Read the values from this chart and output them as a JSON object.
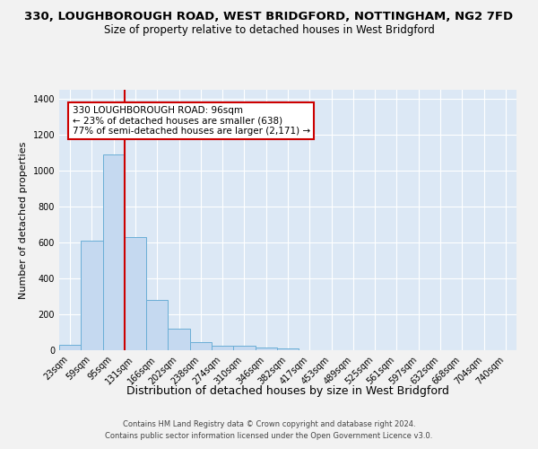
{
  "title_line1": "330, LOUGHBOROUGH ROAD, WEST BRIDGFORD, NOTTINGHAM, NG2 7FD",
  "title_line2": "Size of property relative to detached houses in West Bridgford",
  "xlabel": "Distribution of detached houses by size in West Bridgford",
  "ylabel": "Number of detached properties",
  "categories": [
    "23sqm",
    "59sqm",
    "95sqm",
    "131sqm",
    "166sqm",
    "202sqm",
    "238sqm",
    "274sqm",
    "310sqm",
    "346sqm",
    "382sqm",
    "417sqm",
    "453sqm",
    "489sqm",
    "525sqm",
    "561sqm",
    "597sqm",
    "632sqm",
    "668sqm",
    "704sqm",
    "740sqm"
  ],
  "values": [
    30,
    610,
    1090,
    630,
    280,
    120,
    45,
    25,
    25,
    15,
    10,
    0,
    0,
    0,
    0,
    0,
    0,
    0,
    0,
    0,
    0
  ],
  "bar_color": "#c5d9f0",
  "bar_edge_color": "#6aaed6",
  "red_line_label1": "330 LOUGHBOROUGH ROAD: 96sqm",
  "red_line_label2": "← 23% of detached houses are smaller (638)",
  "red_line_label3": "77% of semi-detached houses are larger (2,171) →",
  "ylim": [
    0,
    1450
  ],
  "yticks": [
    0,
    200,
    400,
    600,
    800,
    1000,
    1200,
    1400
  ],
  "bg_color": "#dce8f5",
  "grid_color": "#ffffff",
  "footer_line1": "Contains HM Land Registry data © Crown copyright and database right 2024.",
  "footer_line2": "Contains public sector information licensed under the Open Government Licence v3.0.",
  "title_fontsize": 9.5,
  "subtitle_fontsize": 8.5,
  "xlabel_fontsize": 9,
  "ylabel_fontsize": 8,
  "tick_fontsize": 7,
  "annot_fontsize": 7.5,
  "footer_fontsize": 6
}
